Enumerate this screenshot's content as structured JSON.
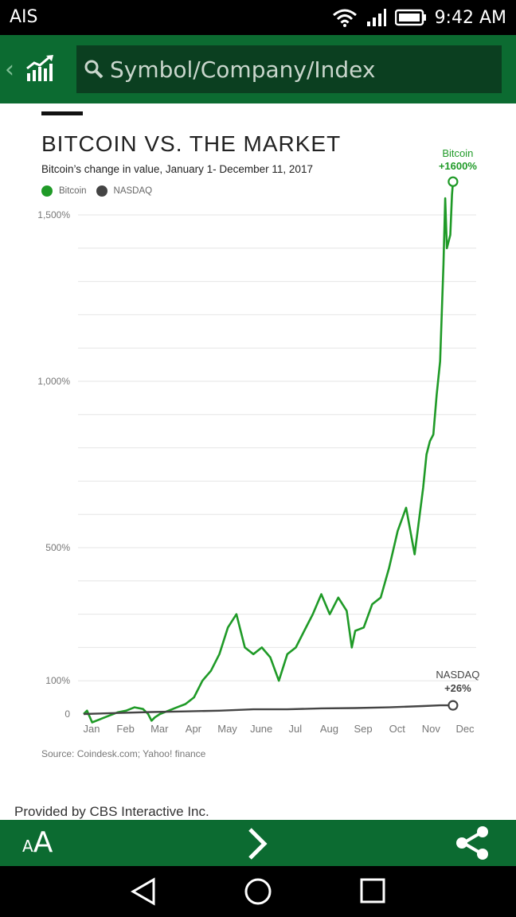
{
  "status_bar": {
    "carrier": "AIS",
    "time": "9:42 AM"
  },
  "header": {
    "search_placeholder": "Symbol/Company/Index"
  },
  "colors": {
    "brand_green": "#0c6b31",
    "bitcoin_green": "#1f9a27",
    "nasdaq_gray": "#444444"
  },
  "chart_data": {
    "type": "line",
    "title": "BITCOIN VS. THE MARKET",
    "subtitle": "Bitcoin’s change in value, January 1- December 11, 2017",
    "y_ticks": [
      {
        "value": 0,
        "label": "0"
      },
      {
        "value": 100,
        "label": "100%"
      },
      {
        "value": 500,
        "label": "500%"
      },
      {
        "value": 1000,
        "label": "1,000%"
      },
      {
        "value": 1500,
        "label": "1,500%"
      }
    ],
    "x_ticks": [
      "Jan",
      "Feb",
      "Mar",
      "Apr",
      "May",
      "June",
      "Jul",
      "Aug",
      "Sep",
      "Oct",
      "Nov",
      "Dec"
    ],
    "xlim": [
      0,
      11.8
    ],
    "ylim": [
      -40,
      1600
    ],
    "legend_position": "top-left",
    "grid": true,
    "series": [
      {
        "name": "Bitcoin",
        "end_label": [
          "Bitcoin",
          "+1600%"
        ],
        "color": "#1f9a27",
        "x": [
          0.0,
          0.1,
          0.25,
          0.5,
          0.75,
          1.0,
          1.25,
          1.5,
          1.75,
          1.9,
          2.0,
          2.1,
          2.25,
          2.5,
          2.75,
          3.0,
          3.25,
          3.5,
          3.75,
          4.0,
          4.25,
          4.5,
          4.75,
          5.0,
          5.25,
          5.5,
          5.75,
          6.0,
          6.25,
          6.5,
          6.75,
          7.0,
          7.25,
          7.5,
          7.75,
          7.9,
          8.0,
          8.25,
          8.5,
          8.75,
          9.0,
          9.25,
          9.5,
          9.75,
          10.0,
          10.1,
          10.2,
          10.3,
          10.4,
          10.5,
          10.6,
          10.65,
          10.7,
          10.8,
          10.85,
          10.88
        ],
        "y": [
          0,
          10,
          -25,
          -15,
          -5,
          5,
          10,
          20,
          15,
          0,
          -20,
          -10,
          0,
          10,
          20,
          30,
          50,
          100,
          130,
          180,
          260,
          300,
          200,
          180,
          200,
          170,
          100,
          180,
          200,
          250,
          300,
          360,
          300,
          350,
          310,
          200,
          250,
          260,
          330,
          350,
          440,
          550,
          620,
          480,
          680,
          780,
          820,
          840,
          960,
          1060,
          1350,
          1550,
          1400,
          1440,
          1560,
          1600
        ]
      },
      {
        "name": "NASDAQ",
        "end_label": [
          "NASDAQ",
          "+26%"
        ],
        "color": "#444444",
        "x": [
          0.0,
          1.0,
          2.0,
          3.0,
          4.0,
          5.0,
          6.0,
          7.0,
          8.0,
          9.0,
          10.0,
          10.5,
          10.88
        ],
        "y": [
          0,
          3,
          6,
          8,
          10,
          14,
          14,
          17,
          18,
          20,
          24,
          26,
          26
        ]
      }
    ]
  },
  "source": "Source: Coindesk.com; Yahoo! finance",
  "provided_by": "Provided by CBS Interactive Inc.",
  "toolbar": {
    "font_small": "A",
    "font_big": "A"
  }
}
